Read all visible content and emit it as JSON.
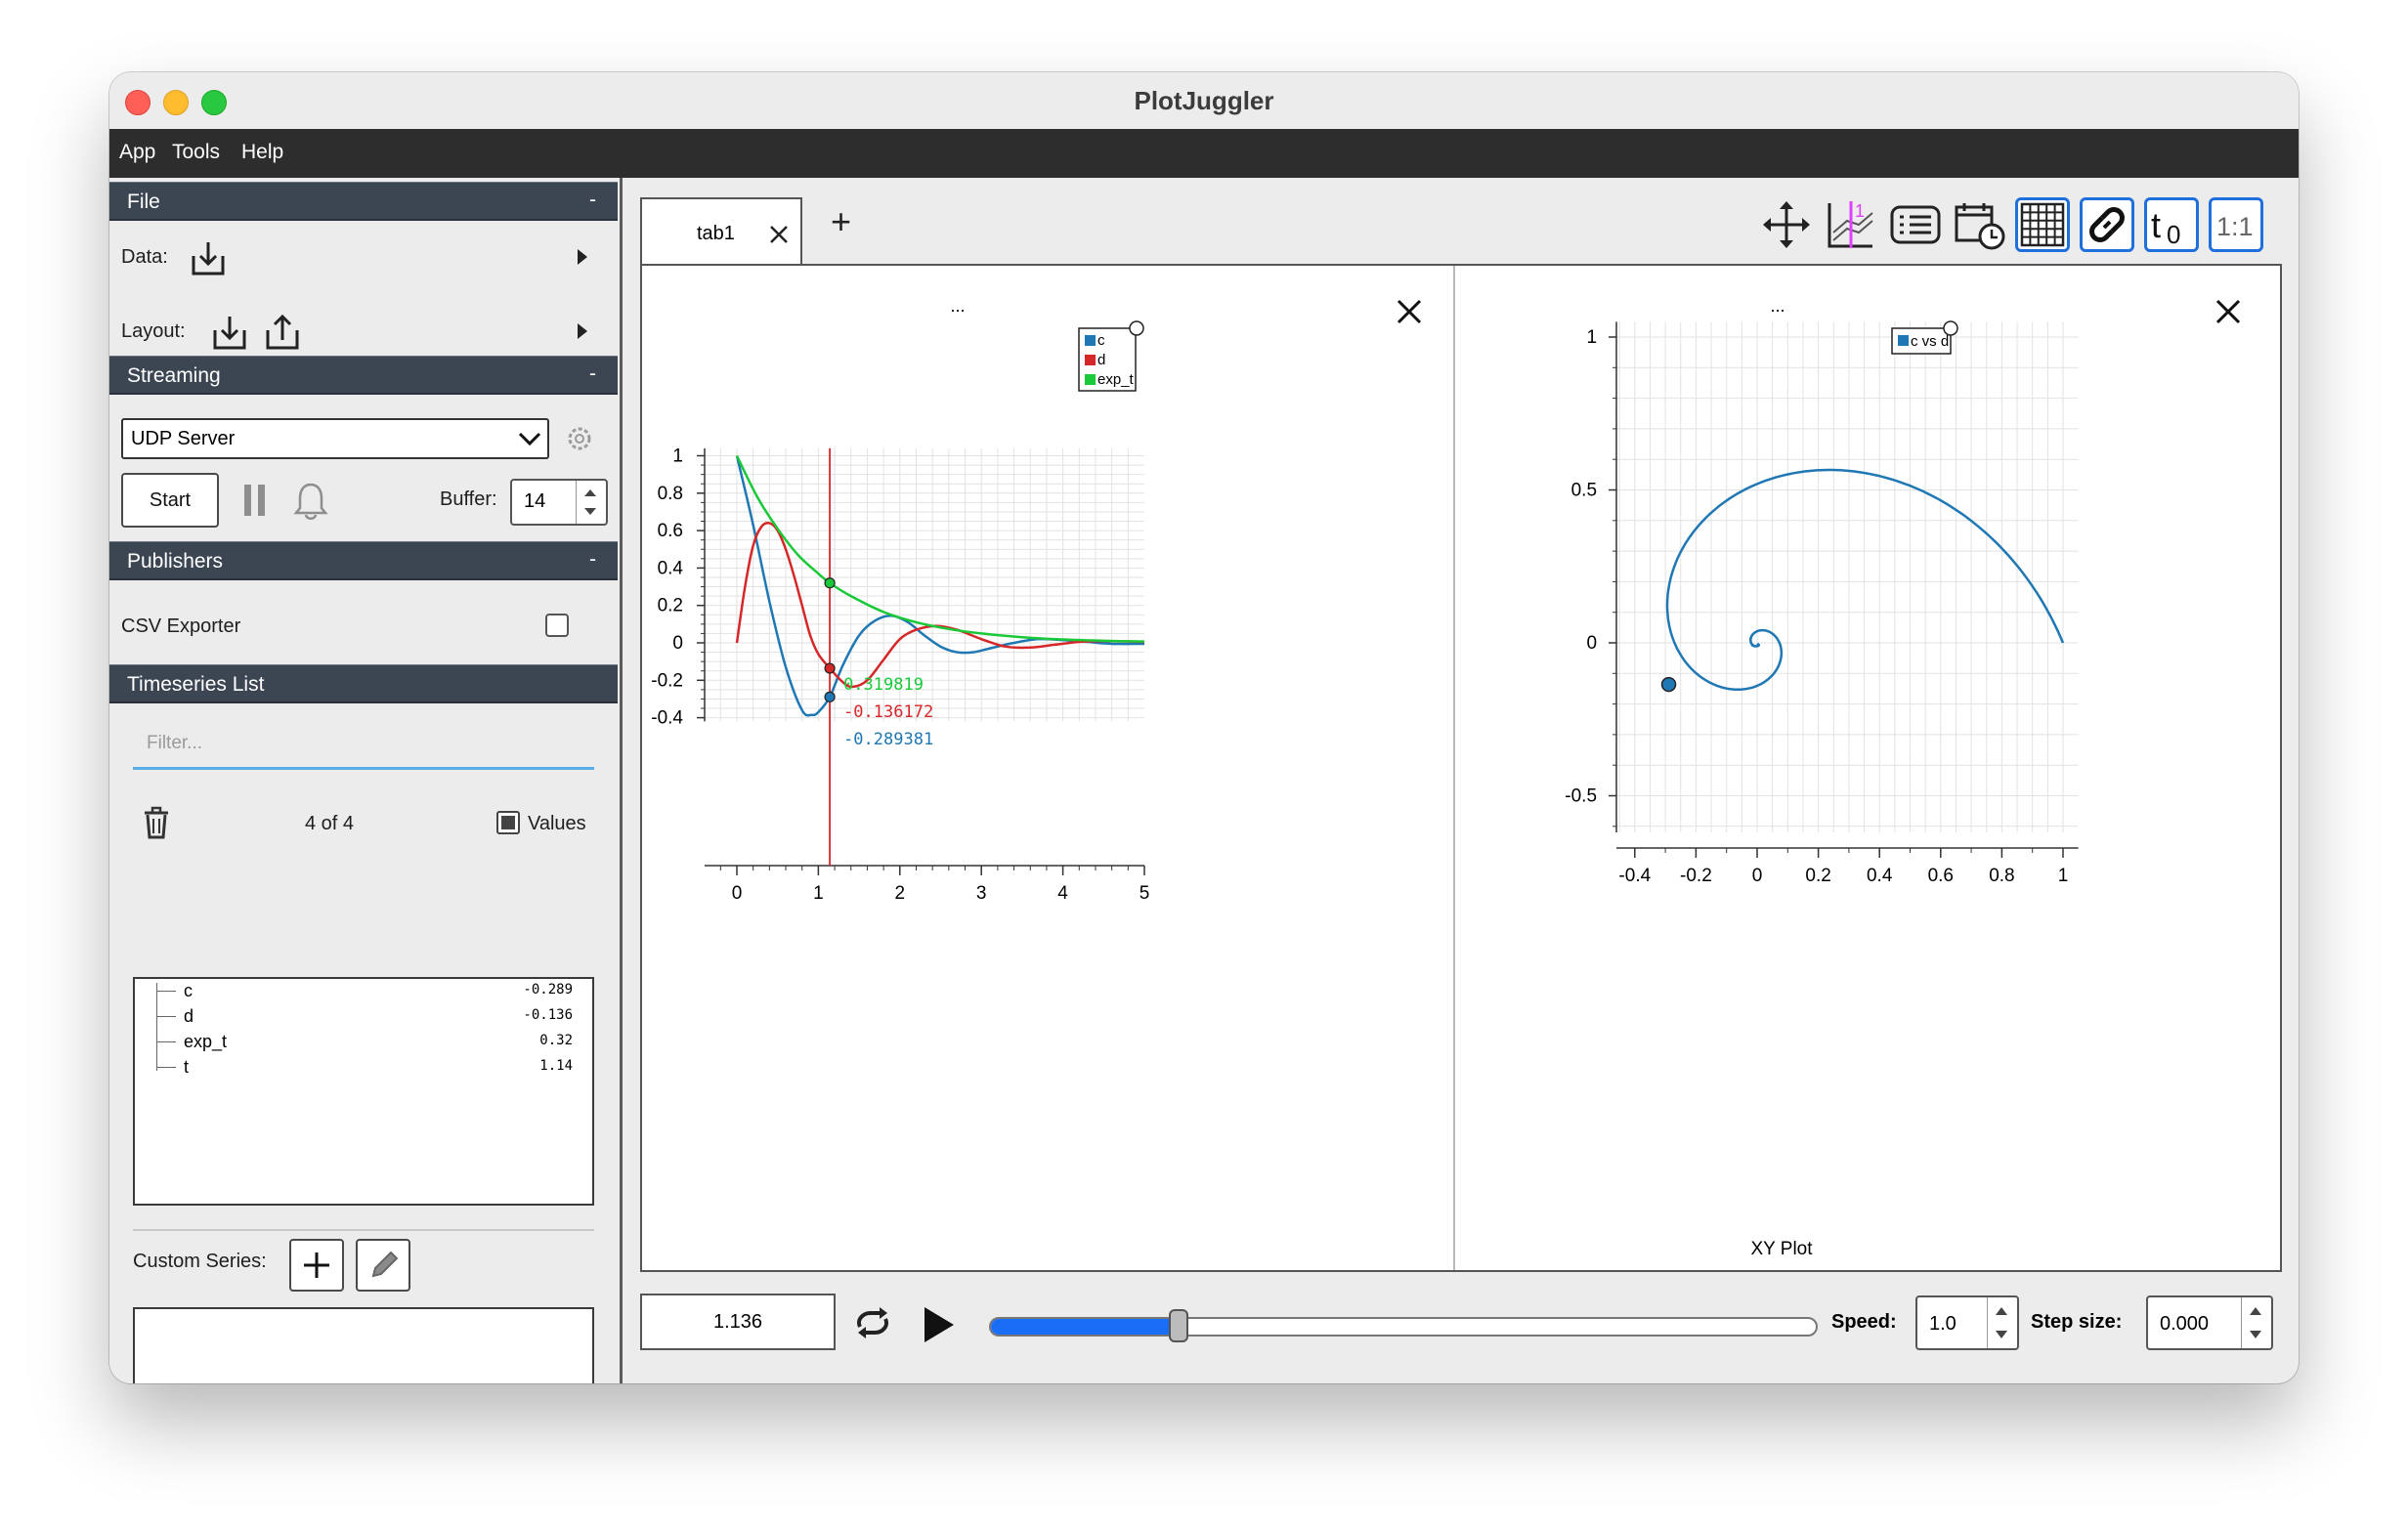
{
  "window": {
    "title": "PlotJuggler"
  },
  "menu": [
    "App",
    "Tools",
    "Help"
  ],
  "left": {
    "file": {
      "header": "File",
      "collapse": "-",
      "data_label": "Data:",
      "layout_label": "Layout:"
    },
    "streaming": {
      "header": "Streaming",
      "collapse": "-",
      "source": "UDP Server",
      "start_label": "Start",
      "buffer_label": "Buffer:",
      "buffer_value": "14"
    },
    "publishers": {
      "header": "Publishers",
      "collapse": "-",
      "csv_label": "CSV Exporter"
    },
    "timeseries": {
      "header": "Timeseries List",
      "filter_placeholder": "Filter...",
      "count": "4 of 4",
      "values_label": "Values",
      "items": [
        {
          "name": "c",
          "value": "-0.289"
        },
        {
          "name": "d",
          "value": "-0.136"
        },
        {
          "name": "exp_t",
          "value": "0.32"
        },
        {
          "name": "t",
          "value": "1.14"
        }
      ],
      "custom_series_label": "Custom Series:"
    }
  },
  "tabs": [
    {
      "label": "tab1"
    }
  ],
  "tab_add": "+",
  "toolbar_icons": [
    "move-icon",
    "time-tracker-icon",
    "list-icon",
    "calendar-clock-icon",
    "grid-icon",
    "link-icon",
    "t0-icon",
    "ratio-icon"
  ],
  "toolbar_text": {
    "t0": "t",
    "t0_sub": "0",
    "ratio": "1:1"
  },
  "plots": {
    "left_title": "...",
    "right_title": "...",
    "right_xlabel": "XY Plot"
  },
  "bottom": {
    "time_value": "1.136",
    "speed_label": "Speed:",
    "speed_value": "1.0",
    "step_label": "Step size:",
    "step_value": "0.000",
    "slider_fraction": 0.227
  },
  "colors": {
    "c": "#1f77b4",
    "d": "#d62728",
    "exp_t": "#1ac938",
    "grid": "#e2e2e2",
    "cursor": "#d62728"
  },
  "chart_data": [
    {
      "type": "line",
      "title": "",
      "xlim": [
        -0.4,
        5.2
      ],
      "ylim": [
        -0.42,
        1.04
      ],
      "x_ticks": [
        0,
        1,
        2,
        3,
        4,
        5
      ],
      "y_ticks": [
        -0.4,
        -0.2,
        0,
        0.2,
        0.4,
        0.6,
        0.8,
        1
      ],
      "grid": true,
      "legend_position": "top-right",
      "series": [
        {
          "name": "c",
          "x": [
            0,
            0.2,
            0.4,
            0.6,
            0.8,
            0.92,
            1.0,
            1.14,
            1.3,
            1.5,
            1.7,
            1.9,
            2.1,
            2.3,
            2.5,
            2.7,
            2.9,
            3.1,
            3.4,
            3.7,
            4.0,
            4.3,
            4.6,
            5.0
          ],
          "y": [
            1,
            0.63,
            0.22,
            -0.13,
            -0.36,
            -0.385,
            -0.37,
            -0.289,
            -0.12,
            0.04,
            0.12,
            0.145,
            0.11,
            0.04,
            -0.02,
            -0.05,
            -0.05,
            -0.03,
            0.0,
            0.02,
            0.015,
            0.005,
            -0.005,
            -0.005
          ]
        },
        {
          "name": "d",
          "x": [
            0,
            0.1,
            0.2,
            0.3,
            0.4,
            0.5,
            0.6,
            0.7,
            0.8,
            0.9,
            1.0,
            1.14,
            1.3,
            1.42,
            1.6,
            1.8,
            2.0,
            2.2,
            2.45,
            2.7,
            3.0,
            3.3,
            3.6,
            3.9,
            4.2,
            4.5,
            5.0
          ],
          "y": [
            0,
            0.3,
            0.52,
            0.62,
            0.64,
            0.6,
            0.5,
            0.36,
            0.2,
            0.04,
            -0.06,
            -0.136,
            -0.21,
            -0.235,
            -0.2,
            -0.09,
            0.02,
            0.07,
            0.09,
            0.07,
            0.02,
            -0.02,
            -0.025,
            -0.01,
            0.005,
            0.01,
            0.005
          ]
        },
        {
          "name": "exp_t",
          "x": [
            0,
            0.25,
            0.5,
            0.75,
            1.0,
            1.14,
            1.4,
            1.8,
            2.2,
            2.6,
            3.0,
            3.5,
            4.0,
            4.5,
            5.0
          ],
          "y": [
            1,
            0.78,
            0.61,
            0.47,
            0.37,
            0.32,
            0.25,
            0.165,
            0.11,
            0.074,
            0.05,
            0.03,
            0.018,
            0.011,
            0.007
          ]
        }
      ],
      "cursor_x": 1.14,
      "cursor_labels": [
        "0.319819",
        "-0.136172",
        "-0.289381"
      ]
    },
    {
      "type": "scatter",
      "xlabel": "XY Plot",
      "xlim": [
        -0.45,
        1.05
      ],
      "ylim": [
        -0.6,
        1.05
      ],
      "x_ticks": [
        -0.4,
        -0.2,
        0,
        0.2,
        0.4,
        0.6,
        0.8,
        1
      ],
      "y_ticks": [
        -0.5,
        0,
        0.5,
        1
      ],
      "grid": true,
      "legend_position": "top-right",
      "series": [
        {
          "name": "c vs d",
          "note": "spiral of c (x) vs d (y)"
        }
      ],
      "cursor_point": [
        -0.289,
        -0.136
      ]
    }
  ]
}
